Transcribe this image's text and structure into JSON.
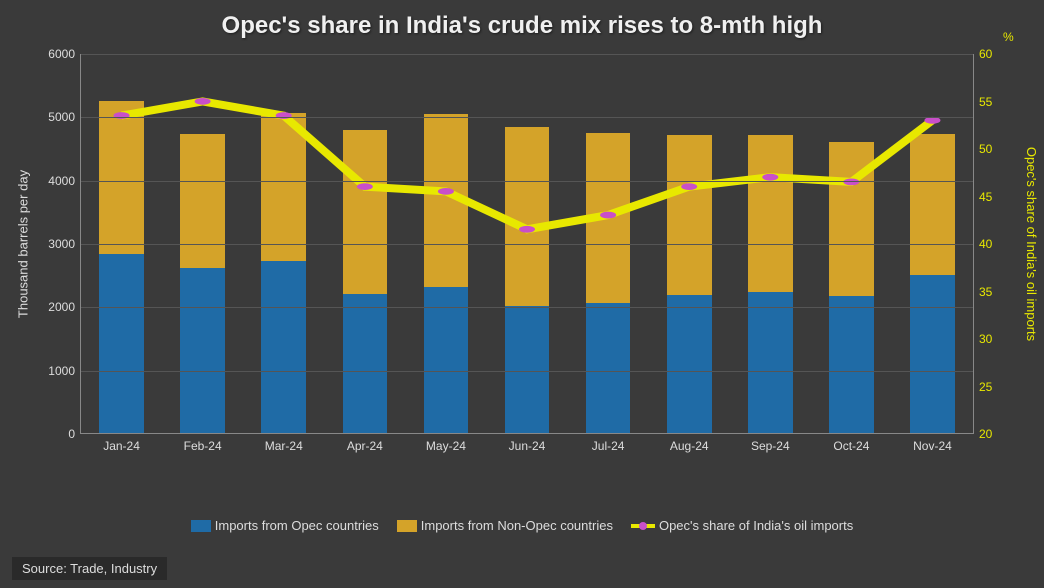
{
  "title": "Opec's share in India's crude mix rises to 8-mth high",
  "y_left": {
    "title": "Thousand barrels per day",
    "min": 0,
    "max": 6000,
    "step": 1000,
    "color": "#dddddd"
  },
  "y_right": {
    "title": "Opec's share of India's oil imports",
    "min": 20,
    "max": 60,
    "step": 5,
    "unit": "%",
    "color": "#e8e800"
  },
  "categories": [
    "Jan-24",
    "Feb-24",
    "Mar-24",
    "Apr-24",
    "May-24",
    "Jun-24",
    "Jul-24",
    "Aug-24",
    "Sep-24",
    "Oct-24",
    "Nov-24"
  ],
  "series": {
    "opec": [
      2820,
      2600,
      2720,
      2200,
      2300,
      2000,
      2050,
      2180,
      2220,
      2170,
      2500
    ],
    "nonopec": [
      2430,
      2120,
      2330,
      2580,
      2740,
      2830,
      2680,
      2530,
      2490,
      2430,
      2220
    ],
    "share_pct": [
      53.5,
      55.0,
      53.5,
      46.0,
      45.5,
      41.5,
      43.0,
      46.0,
      47.0,
      46.5,
      53.0
    ]
  },
  "colors": {
    "opec": "#1f6ba6",
    "nonopec": "#d4a329",
    "line": "#e8e800",
    "marker": "#c94fc9",
    "background": "#3a3a3a",
    "grid": "#555555"
  },
  "legend": {
    "opec": "Imports from Opec countries",
    "nonopec": "Imports from Non-Opec countries",
    "share": "Opec's share of India's oil imports"
  },
  "source": "Source: Trade, Industry"
}
